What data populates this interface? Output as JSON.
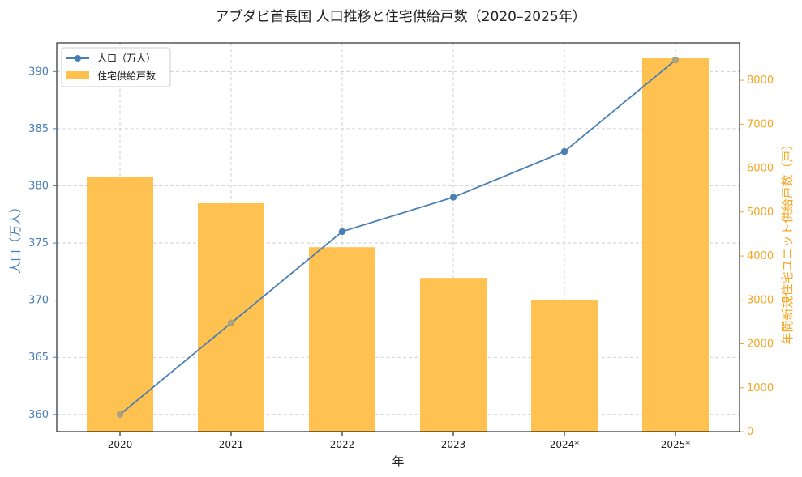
{
  "chart_data": {
    "type": "bar+line",
    "title": "アブダビ首長国 人口推移と住宅供給戸数（2020–2025年）",
    "categories": [
      "2020",
      "2021",
      "2022",
      "2023",
      "2024*",
      "2025*"
    ],
    "xlabel": "年",
    "series": [
      {
        "name": "人口（万人）",
        "type": "line",
        "axis": "left",
        "color": "#4a7fb5",
        "values": [
          360,
          368,
          376,
          379,
          383,
          391
        ]
      },
      {
        "name": "住宅供給戸数",
        "type": "bar",
        "axis": "right",
        "color": "#ffc04d",
        "values": [
          5800,
          5200,
          4200,
          3500,
          3000,
          8500
        ]
      }
    ],
    "left_axis": {
      "label": "人口（万人）",
      "range": [
        358.5,
        392.5
      ],
      "ticks": [
        360,
        365,
        370,
        375,
        380,
        385,
        390
      ],
      "color": "#4a7fb5"
    },
    "right_axis": {
      "label": "年間新規住宅ユニット供給戸数（戸）",
      "range": [
        0,
        8850
      ],
      "ticks": [
        0,
        1000,
        2000,
        3000,
        4000,
        5000,
        6000,
        7000,
        8000
      ],
      "color": "#f5a623"
    },
    "grid": true,
    "legend": "top-left"
  }
}
